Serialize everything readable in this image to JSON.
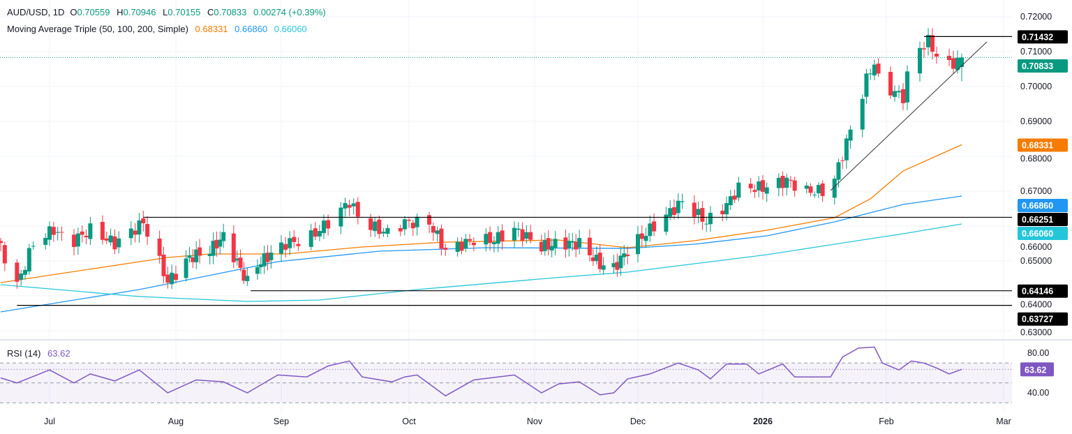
{
  "header": {
    "symbol": "AUD/USD, 1D",
    "o_label": "O",
    "open": "0.70559",
    "h_label": "H",
    "high": "0.70946",
    "l_label": "L",
    "low": "0.70155",
    "c_label": "C",
    "close": "0.70833",
    "change": "0.00274 (+0.39%)",
    "ma_title": "Moving Average Triple (50, 100, 200, Simple)",
    "ma50": "0.68331",
    "ma100": "0.66860",
    "ma200": "0.66060"
  },
  "rsi_header": {
    "title": "RSI (14)",
    "value": "63.62"
  },
  "colors": {
    "up": "#089981",
    "down": "#f23645",
    "ma50": "#f57c00",
    "ma100": "#2196f3",
    "ma200": "#26c6da",
    "rsi": "#7e57c2",
    "level": "#000000"
  },
  "chart_data": [
    {
      "type": "candlestick",
      "title": "AUD/USD, 1D",
      "ylim": [
        0.625,
        0.722
      ],
      "y_ticks": [
        "0.72000",
        "0.71000",
        "0.70000",
        "0.69000",
        "0.68000",
        "0.67000",
        "0.66000",
        "0.65000",
        "0.64000",
        "0.63000"
      ],
      "x_ticks": [
        "Jul",
        "Aug",
        "Sep",
        "Oct",
        "Nov",
        "Dec",
        "2026",
        "Feb",
        "Mar"
      ],
      "grid": true,
      "price_path": [
        [
          "2025-06-19",
          0.6538
        ],
        [
          "2025-06-23",
          0.643
        ],
        [
          "2025-06-27",
          0.655
        ],
        [
          "2025-07-02",
          0.659
        ],
        [
          "2025-07-06",
          0.655
        ],
        [
          "2025-07-11",
          0.659
        ],
        [
          "2025-07-17",
          0.655
        ],
        [
          "2025-07-24",
          0.661
        ],
        [
          "2025-07-30",
          0.644
        ],
        [
          "2025-08-05",
          0.651
        ],
        [
          "2025-08-11",
          0.653
        ],
        [
          "2025-08-15",
          0.657
        ],
        [
          "2025-08-22",
          0.644
        ],
        [
          "2025-08-25",
          0.649
        ],
        [
          "2025-09-02",
          0.655
        ],
        [
          "2025-09-07",
          0.656
        ],
        [
          "2025-09-12",
          0.661
        ],
        [
          "2025-09-17",
          0.667
        ],
        [
          "2025-09-20",
          0.661
        ],
        [
          "2025-09-26",
          0.658
        ],
        [
          "2025-09-30",
          0.661
        ],
        [
          "2025-10-06",
          0.661
        ],
        [
          "2025-10-10",
          0.653
        ],
        [
          "2025-10-17",
          0.656
        ],
        [
          "2025-10-22",
          0.656
        ],
        [
          "2025-10-27",
          0.659
        ],
        [
          "2025-11-03",
          0.654
        ],
        [
          "2025-11-08",
          0.655
        ],
        [
          "2025-11-14",
          0.655
        ],
        [
          "2025-11-20",
          0.649
        ],
        [
          "2025-11-24",
          0.648
        ],
        [
          "2025-11-28",
          0.653
        ],
        [
          "2025-12-04",
          0.659
        ],
        [
          "2025-12-09",
          0.664
        ],
        [
          "2025-12-12",
          0.667
        ],
        [
          "2025-12-18",
          0.6612
        ],
        [
          "2025-12-23",
          0.666
        ],
        [
          "2025-12-26",
          0.671
        ],
        [
          "2026-01-01",
          0.671
        ],
        [
          "2026-01-07",
          0.673
        ],
        [
          "2026-01-12",
          0.67
        ],
        [
          "2026-01-18",
          0.67
        ],
        [
          "2026-01-22",
          0.684
        ],
        [
          "2026-01-25",
          0.694
        ],
        [
          "2026-01-27",
          0.702
        ],
        [
          "2026-01-29",
          0.707
        ],
        [
          "2026-01-30",
          0.702
        ],
        [
          "2026-02-02",
          0.699
        ],
        [
          "2026-02-05",
          0.697
        ],
        [
          "2026-02-06",
          0.703
        ],
        [
          "2026-02-08",
          0.71
        ],
        [
          "2026-02-11",
          0.713
        ],
        [
          "2026-02-13",
          0.709
        ],
        [
          "2026-02-16",
          0.706
        ],
        [
          "2026-02-19",
          0.70833
        ]
      ],
      "last": {
        "open": 0.70559,
        "high": 0.70946,
        "low": 0.70155,
        "close": 0.70833
      },
      "moving_averages": [
        {
          "name": "50",
          "color_key": "ma50",
          "last": 0.68331,
          "points": [
            [
              "2025-06-19",
              0.6438
            ],
            [
              "2025-07-30",
              0.651
            ],
            [
              "2025-08-11",
              0.652
            ],
            [
              "2025-09-02",
              0.652
            ],
            [
              "2025-09-20",
              0.654
            ],
            [
              "2025-10-10",
              0.6554
            ],
            [
              "2025-11-08",
              0.656
            ],
            [
              "2025-11-28",
              0.6538
            ],
            [
              "2025-12-15",
              0.6558
            ],
            [
              "2026-01-02",
              0.6588
            ],
            [
              "2026-01-19",
              0.6624
            ],
            [
              "2026-01-28",
              0.6678
            ],
            [
              "2026-02-05",
              0.6758
            ],
            [
              "2026-02-19",
              0.68331
            ]
          ]
        },
        {
          "name": "100",
          "color_key": "ma100",
          "last": 0.6686,
          "points": [
            [
              "2025-06-19",
              0.6354
            ],
            [
              "2025-07-23",
              0.6418
            ],
            [
              "2025-08-31",
              0.6498
            ],
            [
              "2025-09-24",
              0.6528
            ],
            [
              "2025-10-20",
              0.6538
            ],
            [
              "2025-11-28",
              0.6536
            ],
            [
              "2025-12-15",
              0.6548
            ],
            [
              "2026-01-02",
              0.6572
            ],
            [
              "2026-01-19",
              0.6612
            ],
            [
              "2026-02-05",
              0.6662
            ],
            [
              "2026-02-19",
              0.6686
            ]
          ]
        },
        {
          "name": "200",
          "color_key": "ma200",
          "last": 0.6606,
          "points": [
            [
              "2025-06-19",
              0.6432
            ],
            [
              "2025-07-23",
              0.6398
            ],
            [
              "2025-08-22",
              0.6384
            ],
            [
              "2025-09-10",
              0.6388
            ],
            [
              "2025-10-03",
              0.6418
            ],
            [
              "2025-11-07",
              0.6452
            ],
            [
              "2025-11-28",
              0.6468
            ],
            [
              "2025-12-15",
              0.6492
            ],
            [
              "2026-01-02",
              0.6518
            ],
            [
              "2026-01-19",
              0.6548
            ],
            [
              "2026-02-05",
              0.6578
            ],
            [
              "2026-02-19",
              0.6606
            ]
          ]
        }
      ],
      "levels": [
        {
          "value": "0.71432",
          "from": "2026-02-10"
        },
        {
          "value": "0.66251",
          "from": "2025-07-24"
        },
        {
          "value": "0.64146",
          "from": "2025-08-23"
        },
        {
          "value": "0.63727",
          "from": "2025-06-23"
        }
      ],
      "trendline": [
        [
          "2026-01-18",
          0.6702
        ],
        [
          "2026-02-25",
          0.7128
        ]
      ],
      "price_tags": [
        {
          "value": "0.71432",
          "color_key": "level"
        },
        {
          "value": "0.70833",
          "color_key": "up"
        },
        {
          "value": "0.68331",
          "color_key": "ma50"
        },
        {
          "value": "0.66860",
          "color_key": "ma100"
        },
        {
          "value": "0.66251",
          "color_key": "level"
        },
        {
          "value": "0.66060",
          "color_key": "ma200"
        },
        {
          "value": "0.64146",
          "color_key": "level"
        },
        {
          "value": "0.63727",
          "color_key": "level"
        }
      ]
    },
    {
      "type": "line",
      "title": "RSI (14)",
      "ylim": [
        25,
        95
      ],
      "y_ticks": [
        "80.00",
        "40.00"
      ],
      "bands": [
        70,
        50,
        30
      ],
      "last": "63.62",
      "points": [
        [
          "2025-06-19",
          55
        ],
        [
          "2025-06-23",
          50
        ],
        [
          "2025-07-01",
          63
        ],
        [
          "2025-07-07",
          50
        ],
        [
          "2025-07-11",
          59
        ],
        [
          "2025-07-17",
          52
        ],
        [
          "2025-07-23",
          63
        ],
        [
          "2025-07-30",
          40
        ],
        [
          "2025-08-07",
          53
        ],
        [
          "2025-08-15",
          51
        ],
        [
          "2025-08-22",
          40
        ],
        [
          "2025-08-31",
          58
        ],
        [
          "2025-09-07",
          56
        ],
        [
          "2025-09-12",
          67
        ],
        [
          "2025-09-17",
          72
        ],
        [
          "2025-09-20",
          56
        ],
        [
          "2025-09-27",
          51
        ],
        [
          "2025-09-30",
          56
        ],
        [
          "2025-10-03",
          58
        ],
        [
          "2025-10-10",
          37
        ],
        [
          "2025-10-17",
          53
        ],
        [
          "2025-10-27",
          58
        ],
        [
          "2025-11-03",
          40
        ],
        [
          "2025-11-08",
          49
        ],
        [
          "2025-11-14",
          51
        ],
        [
          "2025-11-20",
          38
        ],
        [
          "2025-11-24",
          40
        ],
        [
          "2025-11-28",
          54
        ],
        [
          "2025-12-04",
          59
        ],
        [
          "2025-12-11",
          70
        ],
        [
          "2025-12-16",
          63
        ],
        [
          "2025-12-19",
          54
        ],
        [
          "2025-12-23",
          69
        ],
        [
          "2025-12-28",
          69
        ],
        [
          "2025-12-31",
          59
        ],
        [
          "2026-01-06",
          69
        ],
        [
          "2026-01-09",
          56
        ],
        [
          "2026-01-13",
          56
        ],
        [
          "2026-01-18",
          56
        ],
        [
          "2026-01-21",
          76
        ],
        [
          "2026-01-25",
          85
        ],
        [
          "2026-01-29",
          86
        ],
        [
          "2026-01-31",
          70
        ],
        [
          "2026-02-04",
          63
        ],
        [
          "2026-02-07",
          72
        ],
        [
          "2026-02-10",
          70
        ],
        [
          "2026-02-13",
          65
        ],
        [
          "2026-02-16",
          59
        ],
        [
          "2026-02-19",
          63.62
        ]
      ]
    }
  ]
}
